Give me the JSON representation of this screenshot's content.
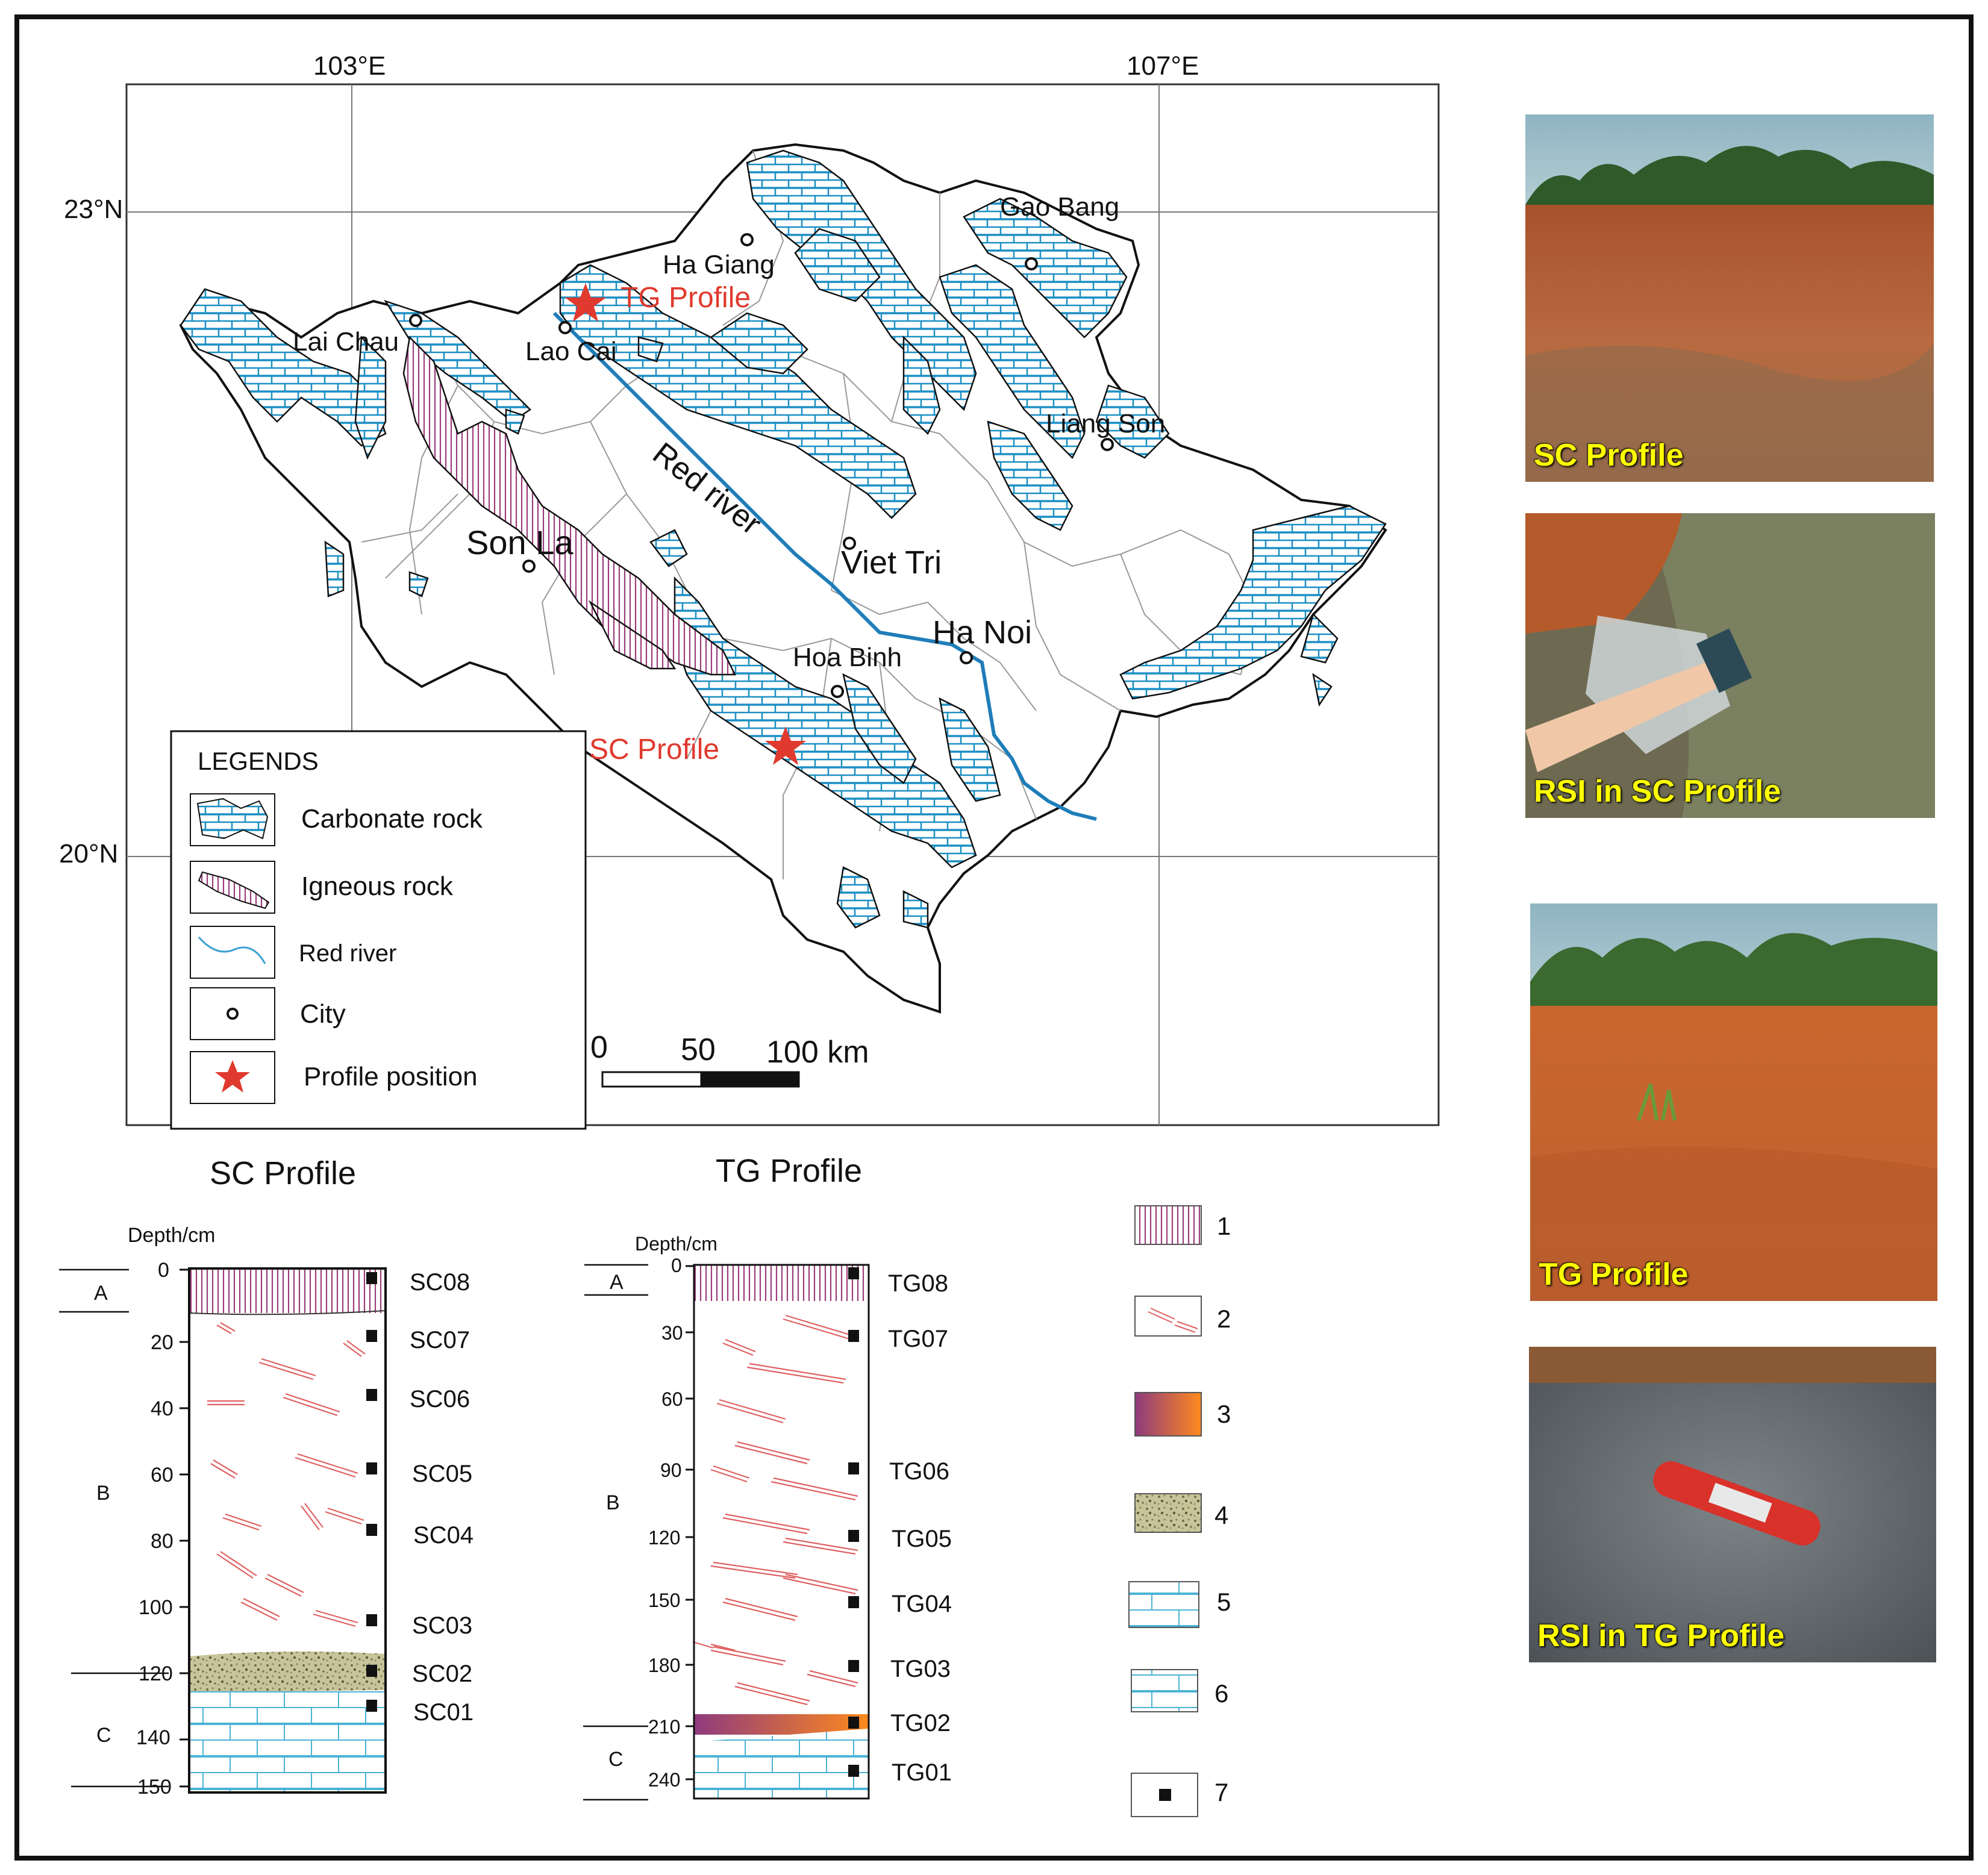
{
  "map": {
    "lon_labels": [
      "103°E",
      "107°E"
    ],
    "lat_labels": [
      "23°N",
      "20°N"
    ],
    "river_label": "Red river",
    "cities": [
      {
        "name": "Ha Giang"
      },
      {
        "name": "Gao Bang"
      },
      {
        "name": "Lai Chau"
      },
      {
        "name": "Lao Cai"
      },
      {
        "name": "Liang Son"
      },
      {
        "name": "Son La"
      },
      {
        "name": "Viet Tri"
      },
      {
        "name": "Ha Noi"
      },
      {
        "name": "Hoa Binh"
      }
    ],
    "profiles": [
      {
        "name": "TG Profile"
      },
      {
        "name": "SC Profile"
      }
    ],
    "scale_bar": {
      "ticks": [
        "0",
        "50",
        "100 km"
      ]
    },
    "colors": {
      "carbonate": "#1b8fc4",
      "igneous": "#9b3d7a",
      "river": "#1e7db8",
      "star": "#e03a2e"
    }
  },
  "legend": {
    "title": "LEGENDS",
    "items": [
      {
        "label": "Carbonate rock",
        "icon": "carbonate-swatch"
      },
      {
        "label": "Igneous rock",
        "icon": "igneous-swatch"
      },
      {
        "label": "Red river",
        "icon": "river-line"
      },
      {
        "label": "City",
        "icon": "city-circle"
      },
      {
        "label": "Profile position",
        "icon": "red-star"
      }
    ]
  },
  "columns": {
    "sc": {
      "title": "SC Profile",
      "depth_label": "Depth/cm",
      "depth_ticks": [
        "0",
        "20",
        "40",
        "60",
        "80",
        "100",
        "120",
        "140",
        "150"
      ],
      "horizons": [
        "A",
        "B",
        "C"
      ],
      "samples": [
        "SC08",
        "SC07",
        "SC06",
        "SC05",
        "SC04",
        "SC03",
        "SC02",
        "SC01"
      ]
    },
    "tg": {
      "title": "TG Profile",
      "depth_label": "Depth/cm",
      "depth_ticks": [
        "0",
        "30",
        "60",
        "90",
        "120",
        "150",
        "180",
        "210",
        "240"
      ],
      "horizons": [
        "A",
        "B",
        "C"
      ],
      "samples": [
        "TG08",
        "TG07",
        "TG06",
        "TG05",
        "TG04",
        "TG03",
        "TG02",
        "TG01"
      ]
    }
  },
  "column_legend": [
    "1",
    "2",
    "3",
    "4",
    "5",
    "6",
    "7"
  ],
  "photos": [
    {
      "caption": "SC Profile"
    },
    {
      "caption": "RSI in SC Profile"
    },
    {
      "caption": "TG Profile"
    },
    {
      "caption": "RSI in TG Profile"
    }
  ]
}
